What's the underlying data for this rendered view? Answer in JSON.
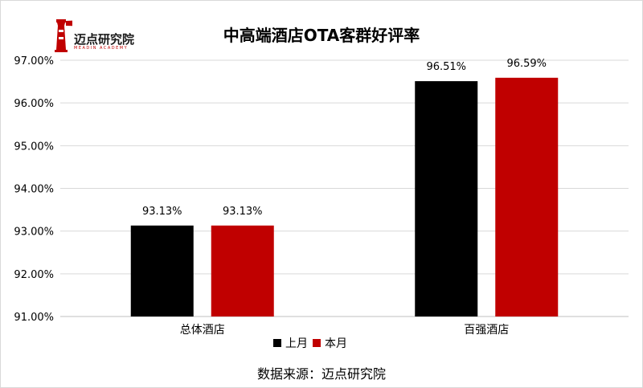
{
  "logo": {
    "text": "迈点研究院",
    "subtext": "MEADIN ACADEMY"
  },
  "colors": {
    "last_month": "#000000",
    "this_month": "#c00000",
    "grid": "#d9d9d9"
  },
  "legend": {
    "last_month": "上月",
    "this_month": "本月"
  },
  "source": "数据来源：迈点研究院",
  "chart_data": {
    "type": "bar",
    "title": "中高端酒店OTA客群好评率",
    "categories": [
      "总体酒店",
      "百强酒店"
    ],
    "series": [
      {
        "name": "上月",
        "values": [
          93.13,
          96.51
        ],
        "labels": [
          "93.13%",
          "96.51%"
        ]
      },
      {
        "name": "本月",
        "values": [
          93.13,
          96.59
        ],
        "labels": [
          "93.13%",
          "96.59%"
        ]
      }
    ],
    "ylim": [
      91,
      97
    ],
    "yticks": [
      "91.00%",
      "92.00%",
      "93.00%",
      "94.00%",
      "95.00%",
      "96.00%",
      "97.00%"
    ],
    "grid": true,
    "legend_position": "bottom"
  }
}
